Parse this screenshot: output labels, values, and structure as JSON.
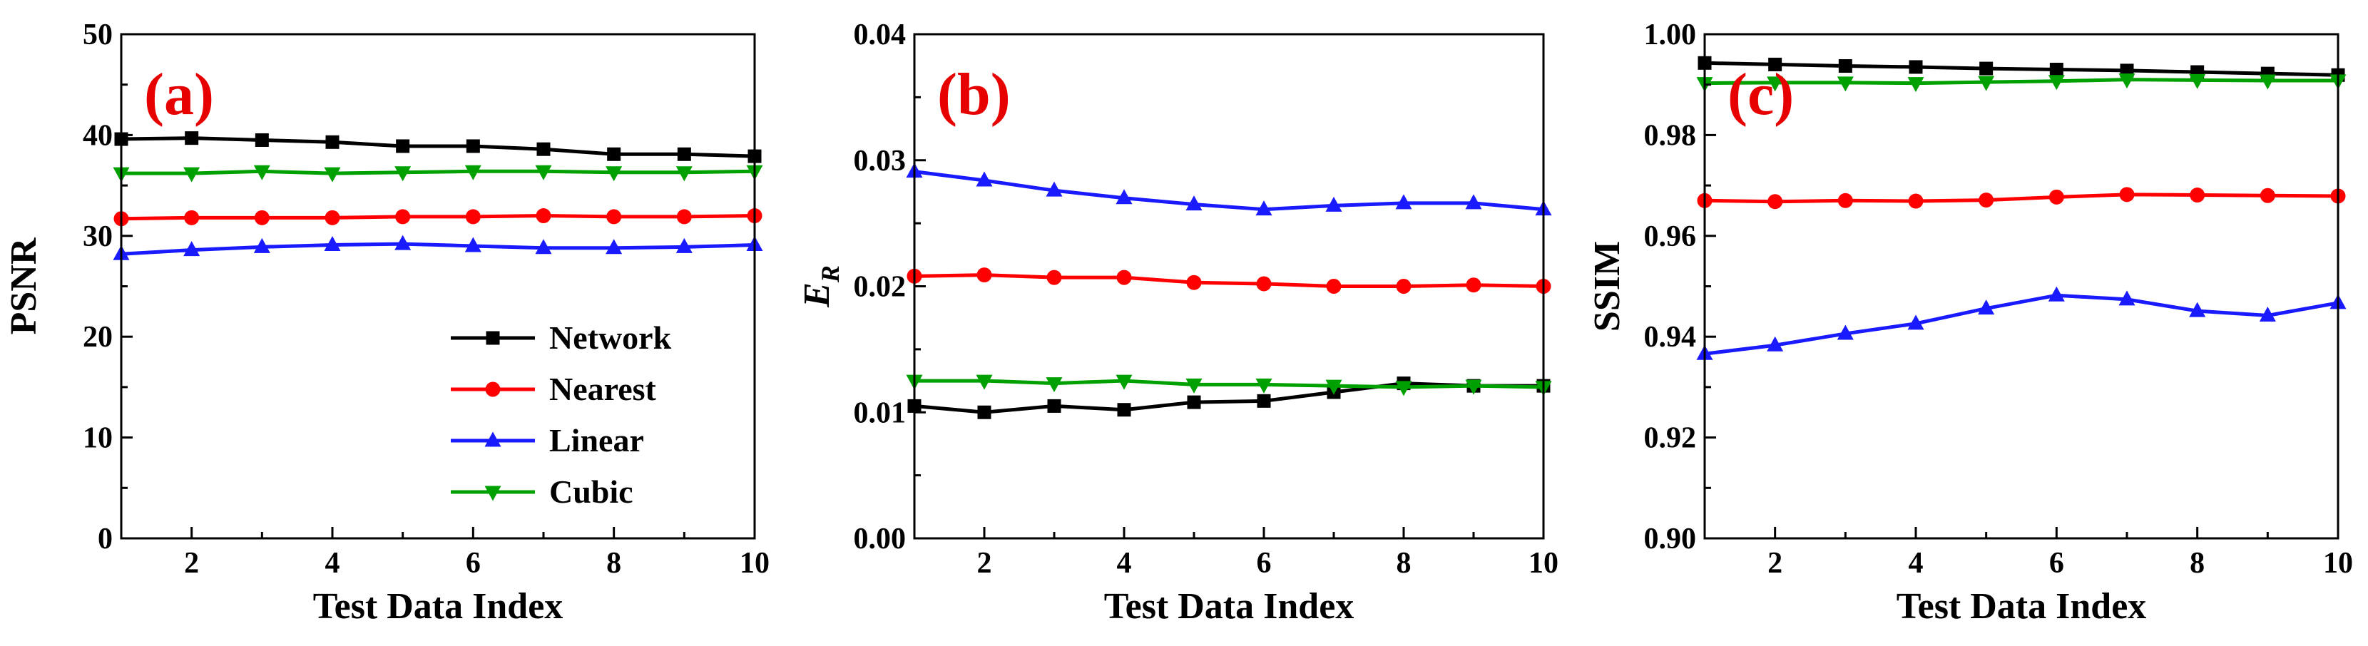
{
  "colors": {
    "Network": "#000000",
    "Nearest": "#ff0000",
    "Linear": "#1a1aff",
    "Cubic": "#00a000",
    "panel_label": "#e60000"
  },
  "markers": {
    "Network": "square",
    "Nearest": "circle",
    "Linear": "triangle-up",
    "Cubic": "triangle-down"
  },
  "legend": {
    "placement": "lower-right of panel (a)",
    "entries": [
      "Network",
      "Nearest",
      "Linear",
      "Cubic"
    ]
  },
  "chart_data": [
    {
      "type": "line",
      "panel_label": "(a)",
      "xlabel": "Test Data Index",
      "ylabel": "PSNR",
      "xlim": [
        1,
        10
      ],
      "ylim": [
        0,
        50
      ],
      "xticks": [
        2,
        4,
        6,
        8,
        10
      ],
      "yticks": [
        0,
        10,
        20,
        30,
        40,
        50
      ],
      "ytick_labels": [
        "0",
        "10",
        "20",
        "30",
        "40",
        "50"
      ],
      "grid": false,
      "x": [
        1,
        2,
        3,
        4,
        5,
        6,
        7,
        8,
        9,
        10
      ],
      "series": [
        {
          "name": "Network",
          "values": [
            39.6,
            39.7,
            39.5,
            39.3,
            38.9,
            38.9,
            38.6,
            38.1,
            38.1,
            37.9
          ]
        },
        {
          "name": "Nearest",
          "values": [
            31.7,
            31.8,
            31.8,
            31.8,
            31.9,
            31.9,
            32.0,
            31.9,
            31.9,
            32.0
          ]
        },
        {
          "name": "Linear",
          "values": [
            28.2,
            28.6,
            28.9,
            29.1,
            29.2,
            29.0,
            28.8,
            28.8,
            28.9,
            29.1
          ]
        },
        {
          "name": "Cubic",
          "values": [
            36.2,
            36.2,
            36.4,
            36.2,
            36.3,
            36.4,
            36.4,
            36.3,
            36.3,
            36.4
          ]
        }
      ]
    },
    {
      "type": "line",
      "panel_label": "(b)",
      "xlabel": "Test Data Index",
      "ylabel": "E",
      "ylabel_subscript": "R",
      "xlim": [
        1,
        10
      ],
      "ylim": [
        0,
        0.04
      ],
      "xticks": [
        2,
        4,
        6,
        8,
        10
      ],
      "yticks": [
        0,
        0.01,
        0.02,
        0.03,
        0.04
      ],
      "ytick_labels": [
        "0.00",
        "0.01",
        "0.02",
        "0.03",
        "0.04"
      ],
      "grid": false,
      "x": [
        1,
        2,
        3,
        4,
        5,
        6,
        7,
        8,
        9,
        10
      ],
      "series": [
        {
          "name": "Network",
          "values": [
            0.0105,
            0.01,
            0.0105,
            0.0102,
            0.0108,
            0.0109,
            0.0116,
            0.0123,
            0.0121,
            0.0121
          ]
        },
        {
          "name": "Nearest",
          "values": [
            0.0208,
            0.0209,
            0.0207,
            0.0207,
            0.0203,
            0.0202,
            0.02,
            0.02,
            0.0201,
            0.02
          ]
        },
        {
          "name": "Linear",
          "values": [
            0.0291,
            0.0284,
            0.0276,
            0.027,
            0.0265,
            0.0261,
            0.0264,
            0.0266,
            0.0266,
            0.0261
          ]
        },
        {
          "name": "Cubic",
          "values": [
            0.0125,
            0.0125,
            0.0123,
            0.0125,
            0.0122,
            0.0122,
            0.0121,
            0.012,
            0.0121,
            0.012
          ]
        }
      ]
    },
    {
      "type": "line",
      "panel_label": "(c)",
      "xlabel": "Test Data Index",
      "ylabel": "SSIM",
      "xlim": [
        1,
        10
      ],
      "ylim": [
        0.9,
        1.0
      ],
      "xticks": [
        2,
        4,
        6,
        8,
        10
      ],
      "yticks": [
        0.9,
        0.92,
        0.94,
        0.96,
        0.98,
        1.0
      ],
      "ytick_labels": [
        "0.90",
        "0.92",
        "0.94",
        "0.96",
        "0.98",
        "1.00"
      ],
      "grid": false,
      "x": [
        1,
        2,
        3,
        4,
        5,
        6,
        7,
        8,
        9,
        10
      ],
      "series": [
        {
          "name": "Network",
          "values": [
            0.9943,
            0.994,
            0.9937,
            0.9935,
            0.9932,
            0.993,
            0.9928,
            0.9925,
            0.9922,
            0.9919
          ]
        },
        {
          "name": "Nearest",
          "values": [
            0.967,
            0.9668,
            0.967,
            0.9669,
            0.9671,
            0.9677,
            0.9682,
            0.9681,
            0.968,
            0.9679
          ]
        },
        {
          "name": "Linear",
          "values": [
            0.9366,
            0.9383,
            0.9406,
            0.9426,
            0.9456,
            0.9482,
            0.9474,
            0.9451,
            0.9442,
            0.9467
          ]
        },
        {
          "name": "Cubic",
          "values": [
            0.9903,
            0.9904,
            0.9904,
            0.9903,
            0.9905,
            0.9907,
            0.991,
            0.9909,
            0.9908,
            0.9908
          ]
        }
      ]
    }
  ]
}
